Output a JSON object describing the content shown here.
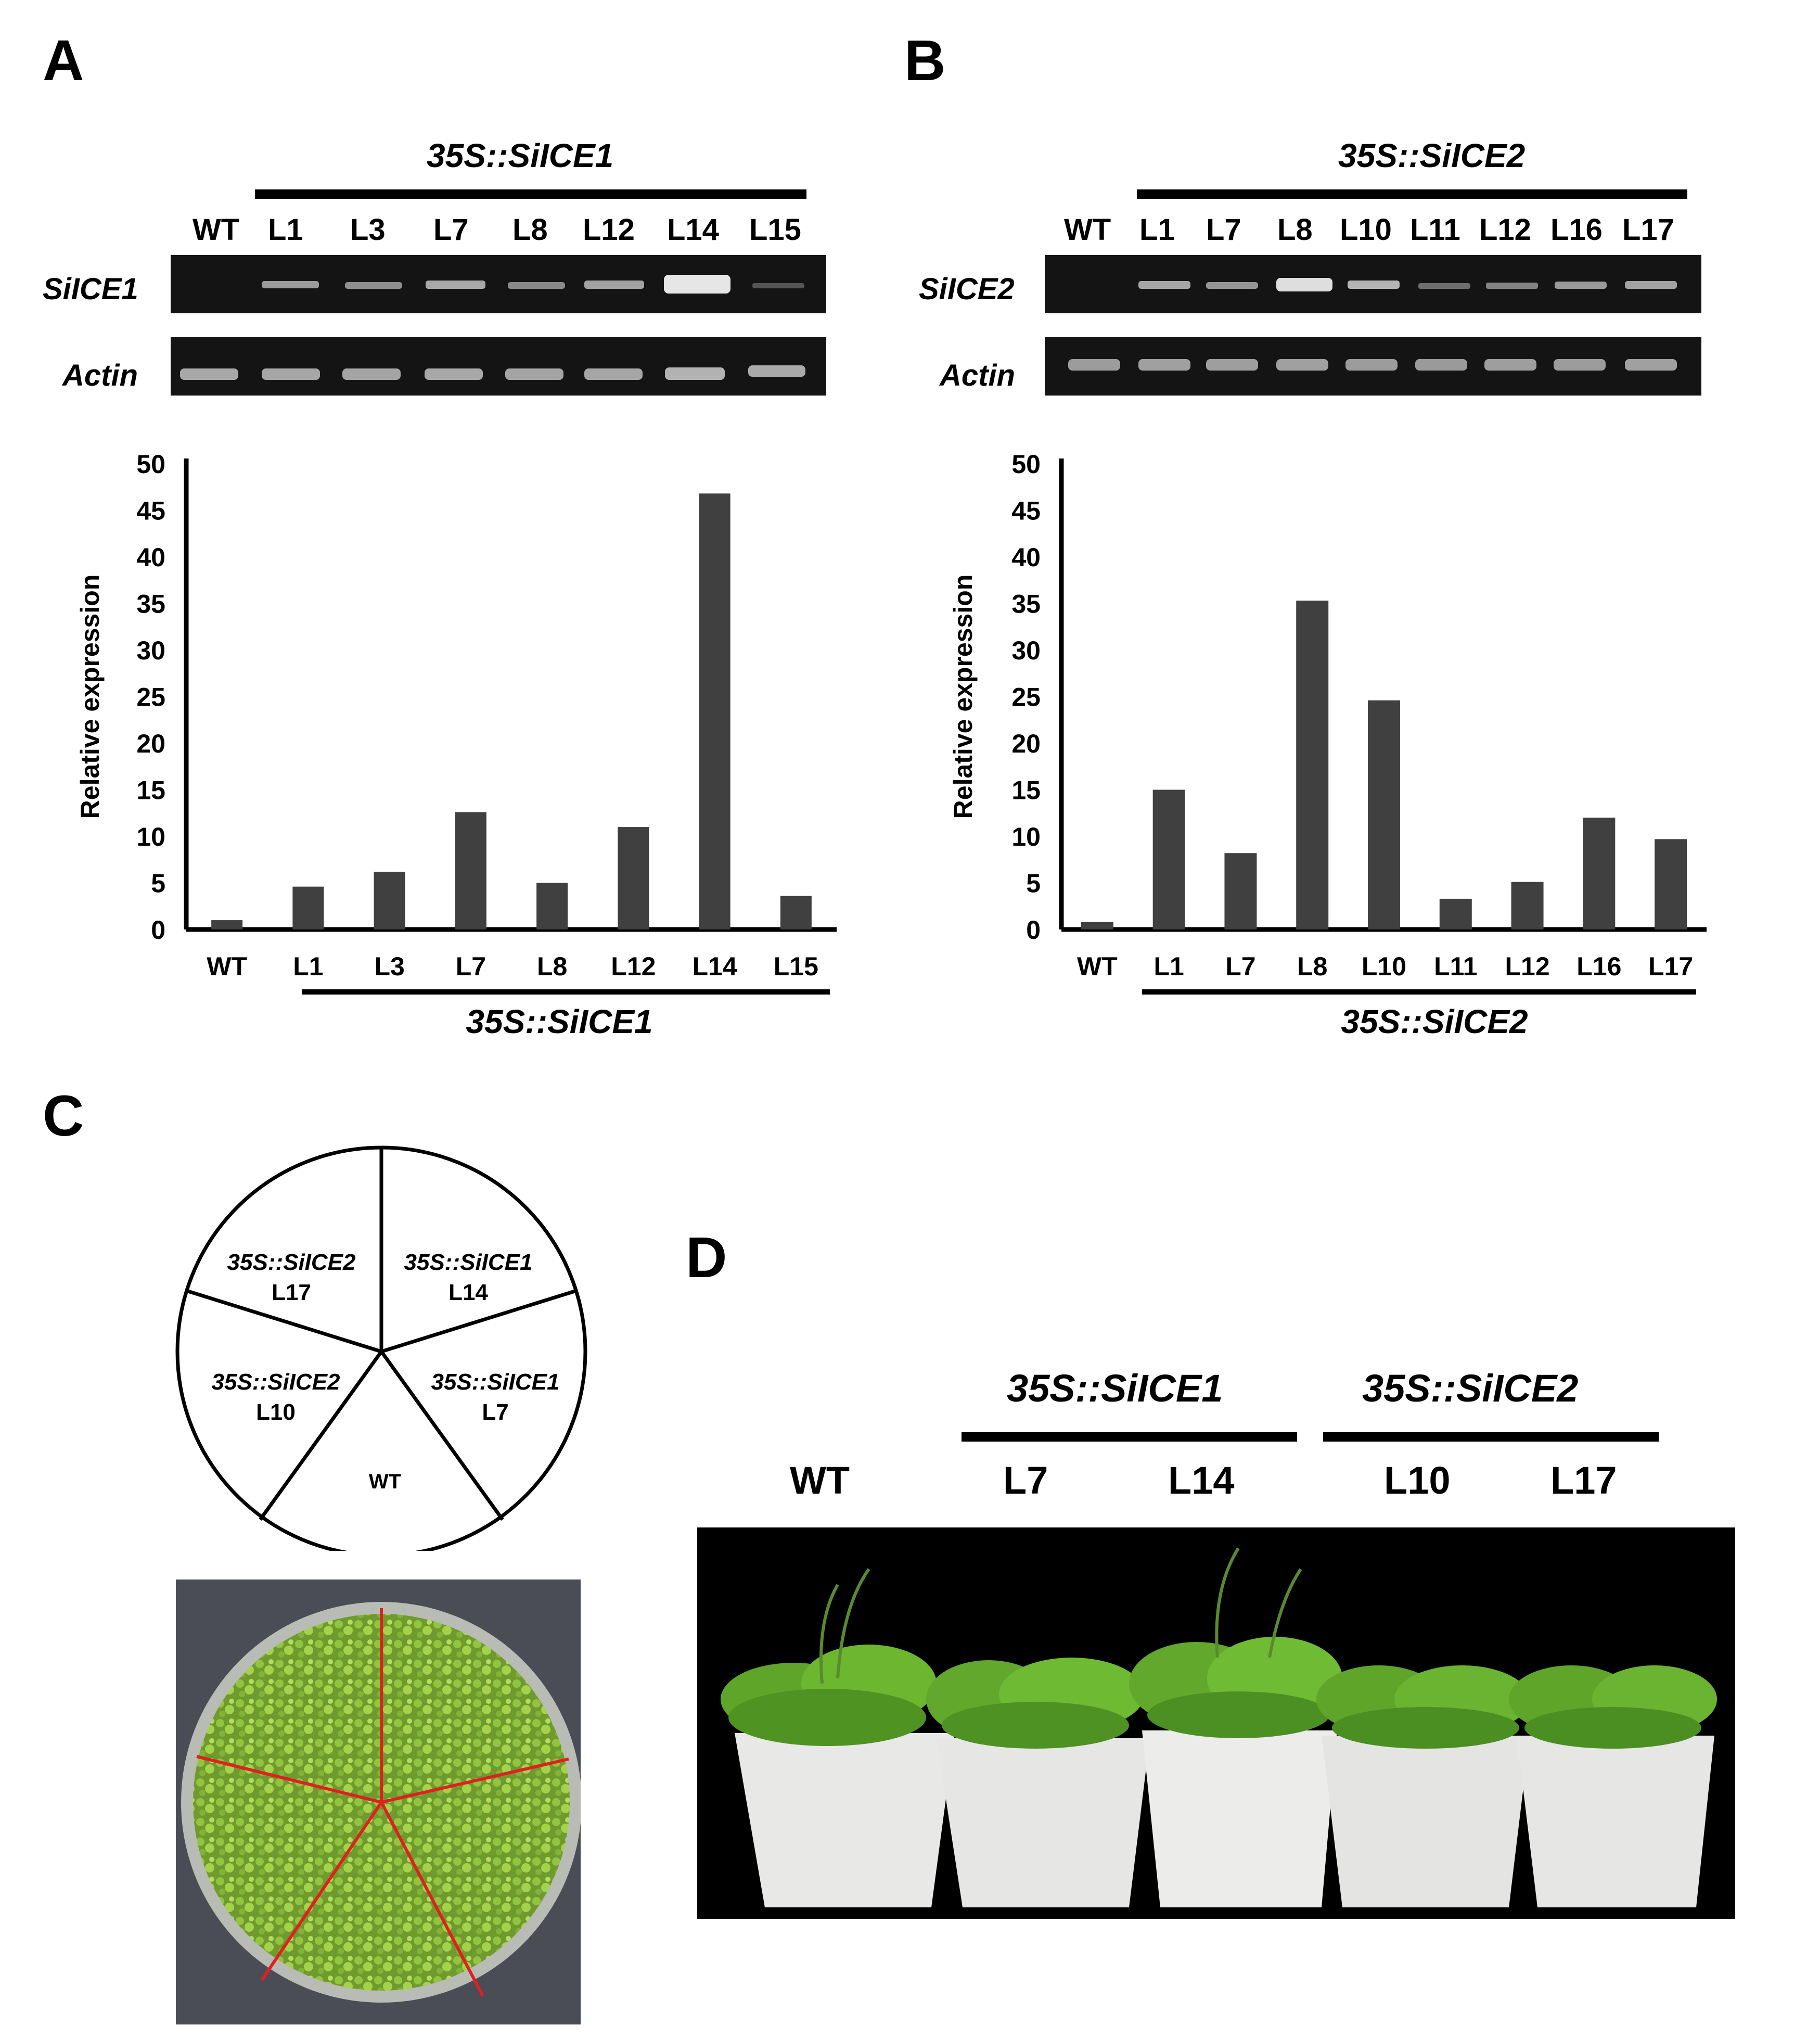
{
  "panels": {
    "A": "A",
    "B": "B",
    "C": "C",
    "D": "D"
  },
  "gel_A": {
    "construct": "35S::SiICE1",
    "lanes": [
      "WT",
      "L1",
      "L3",
      "L7",
      "L8",
      "L12",
      "L14",
      "L15"
    ],
    "gene_label": "SiICE1",
    "actin_label": "Actin"
  },
  "gel_B": {
    "construct": "35S::SiICE2",
    "lanes": [
      "WT",
      "L1",
      "L7",
      "L8",
      "L10",
      "L11",
      "L12",
      "L16",
      "L17"
    ],
    "gene_label": "SiICE2",
    "actin_label": "Actin"
  },
  "chart_data": [
    {
      "type": "bar",
      "panel": "A",
      "categories": [
        "WT",
        "L1",
        "L3",
        "L7",
        "L8",
        "L12",
        "L14",
        "L15"
      ],
      "values": [
        1,
        4.6,
        6.2,
        12.6,
        5,
        11,
        46.8,
        3.6
      ],
      "ylabel": "Relative expression",
      "xlabel": "35S::SiICE1",
      "ylim": [
        0,
        50
      ],
      "yticks": [
        0,
        5,
        10,
        15,
        20,
        25,
        30,
        35,
        40,
        45,
        50
      ],
      "bar_color": "#404040",
      "grid": false
    },
    {
      "type": "bar",
      "panel": "B",
      "categories": [
        "WT",
        "L1",
        "L7",
        "L8",
        "L10",
        "L11",
        "L12",
        "L16",
        "L17"
      ],
      "values": [
        0.8,
        15,
        8.2,
        35.3,
        24.6,
        3.3,
        5.1,
        12,
        9.7
      ],
      "ylabel": "Relative expression",
      "xlabel": "35S::SiICE2",
      "ylim": [
        0,
        50
      ],
      "yticks": [
        0,
        5,
        10,
        15,
        20,
        25,
        30,
        35,
        40,
        45,
        50
      ],
      "bar_color": "#404040",
      "grid": false
    }
  ],
  "diagram_C": {
    "sectors": [
      {
        "line1": "35S::SiICE2",
        "line2": "L17"
      },
      {
        "line1": "35S::SiICE1",
        "line2": "L14"
      },
      {
        "line1": "35S::SiICE2",
        "line2": "L10"
      },
      {
        "line1": "35S::SiICE1",
        "line2": "L7"
      },
      {
        "line1": "",
        "line2": "WT"
      }
    ],
    "divider_color": "#e02020"
  },
  "photo_D": {
    "wt_label": "WT",
    "construct1": "35S::SiICE1",
    "construct2": "35S::SiICE2",
    "lines1": [
      "L7",
      "L14"
    ],
    "lines2": [
      "L10",
      "L17"
    ]
  }
}
